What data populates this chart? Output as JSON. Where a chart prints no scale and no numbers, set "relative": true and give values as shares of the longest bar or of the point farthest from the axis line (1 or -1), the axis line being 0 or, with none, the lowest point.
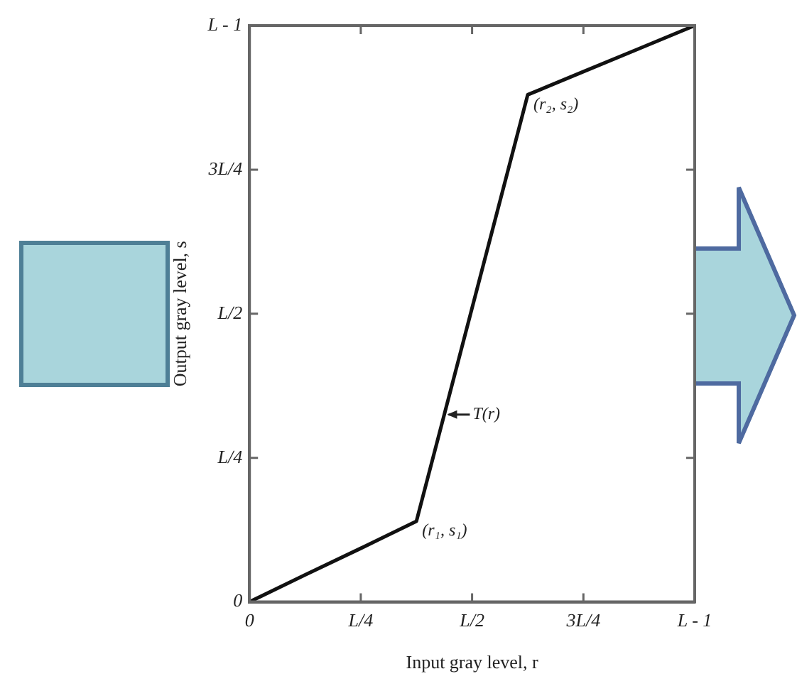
{
  "chart_data": {
    "type": "line",
    "xlabel": "Input gray level, r",
    "ylabel": "Output gray level, s",
    "categories": [
      "0",
      null,
      "L/4",
      null,
      "L/2",
      null,
      "3L/4",
      null,
      "L - 1"
    ],
    "series": [
      {
        "color": "#111111",
        "values": [
          0,
          0.047,
          0.093,
          0.14,
          0.51,
          0.88,
          0.92,
          0.96,
          1
        ]
      }
    ],
    "relative": true,
    "annotations": [
      "0",
      "L/4",
      "L/2",
      "3L/4",
      "L - 1",
      "(r₁, s₁)",
      "(r₂, s₂)",
      "T(r)"
    ],
    "marker": "none",
    "line_style": "solid",
    "grid": false,
    "legend": false
  }
}
